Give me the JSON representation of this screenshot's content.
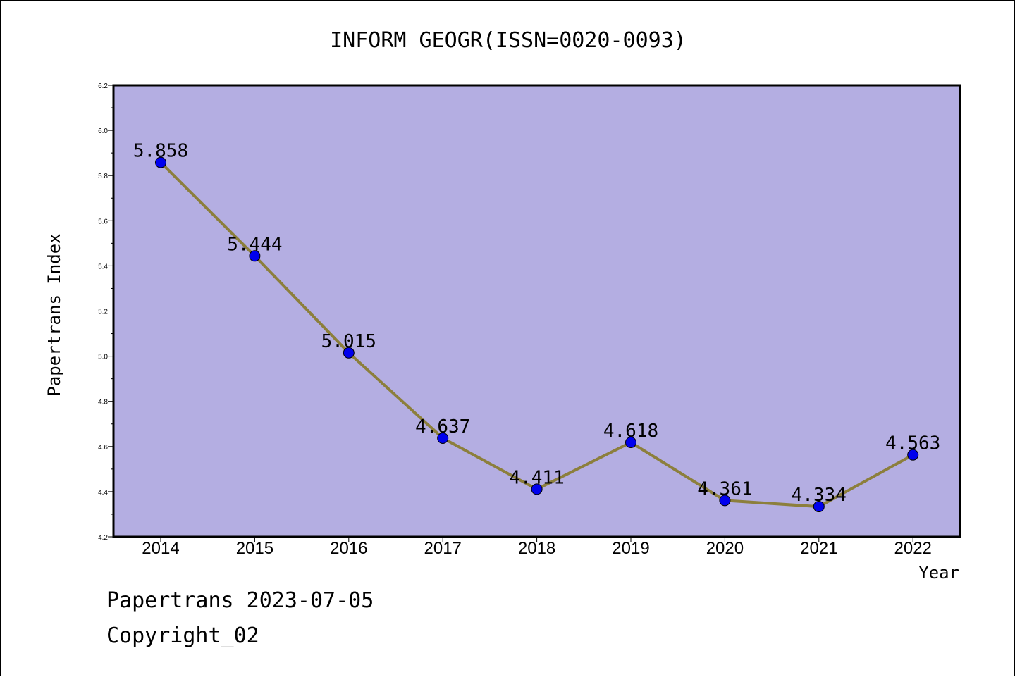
{
  "footer": {
    "date_line": "Papertrans 2023-07-05",
    "copyright": "Copyright_02"
  },
  "chart_data": {
    "type": "line",
    "title": "INFORM GEOGR(ISSN=0020-0093)",
    "xlabel": "Year",
    "ylabel": "Papertrans Index",
    "categories": [
      "2014",
      "2015",
      "2016",
      "2017",
      "2018",
      "2019",
      "2020",
      "2021",
      "2022"
    ],
    "series": [
      {
        "values": [
          5.858,
          5.444,
          5.015,
          4.637,
          4.411,
          4.618,
          4.361,
          4.334,
          4.563
        ],
        "data_labels": [
          "5.858",
          "5.444",
          "5.015",
          "4.637",
          "4.411",
          "4.618",
          "4.361",
          "4.334",
          "4.563"
        ]
      }
    ],
    "ylim": [
      4.2,
      6.2
    ],
    "yticks": [
      "4.2",
      "4.4",
      "4.6",
      "4.8",
      "5.0",
      "5.2",
      "5.4",
      "5.6",
      "5.8",
      "6.0",
      "6.2"
    ],
    "grid": false,
    "legend": "none",
    "colors": {
      "plot_background": "#b4aee2",
      "line": "#8c7f3c",
      "marker": "#0000ee"
    }
  }
}
